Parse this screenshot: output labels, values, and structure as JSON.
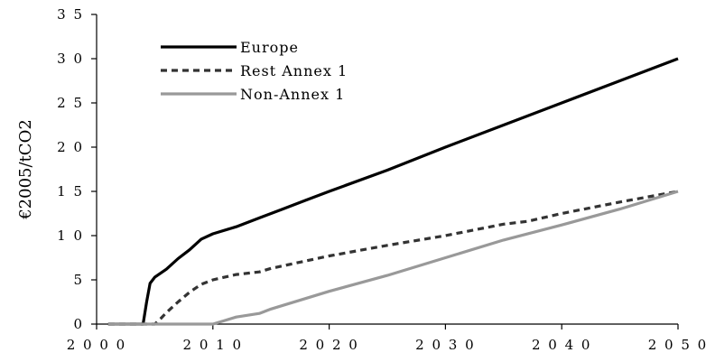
{
  "chart_data": {
    "type": "line",
    "title": "",
    "xlabel": "",
    "ylabel": "€2005/tCO2",
    "xlim": [
      2000,
      2050
    ],
    "ylim": [
      0,
      35
    ],
    "xticks": [
      2000,
      2010,
      2020,
      2030,
      2040,
      2050
    ],
    "yticks": [
      0,
      5,
      10,
      15,
      20,
      25,
      30,
      35
    ],
    "grid": false,
    "legend_position": "top-left",
    "series": [
      {
        "name": "Europe",
        "color": "#000000",
        "dash": "solid",
        "points": [
          [
            2001,
            0
          ],
          [
            2004,
            0
          ],
          [
            2004.3,
            2.5
          ],
          [
            2004.6,
            4.6
          ],
          [
            2005,
            5.3
          ],
          [
            2006,
            6.2
          ],
          [
            2007,
            7.4
          ],
          [
            2008,
            8.4
          ],
          [
            2009,
            9.6
          ],
          [
            2010,
            10.2
          ],
          [
            2012,
            11.0
          ],
          [
            2014,
            12.0
          ],
          [
            2016,
            13.0
          ],
          [
            2018,
            14.0
          ],
          [
            2020,
            15.0
          ],
          [
            2025,
            17.4
          ],
          [
            2030,
            20.0
          ],
          [
            2035,
            22.5
          ],
          [
            2040,
            25.0
          ],
          [
            2045,
            27.5
          ],
          [
            2050,
            30.0
          ]
        ]
      },
      {
        "name": "Rest Annex 1",
        "color": "#333333",
        "dash": "dashed",
        "points": [
          [
            2001,
            0
          ],
          [
            2005,
            0
          ],
          [
            2005.5,
            0.6
          ],
          [
            2006,
            1.3
          ],
          [
            2007,
            2.5
          ],
          [
            2008,
            3.6
          ],
          [
            2009,
            4.5
          ],
          [
            2010,
            5.0
          ],
          [
            2012,
            5.6
          ],
          [
            2014,
            5.9
          ],
          [
            2015,
            6.3
          ],
          [
            2020,
            7.7
          ],
          [
            2025,
            8.9
          ],
          [
            2030,
            10.0
          ],
          [
            2035,
            11.3
          ],
          [
            2037,
            11.6
          ],
          [
            2040,
            12.5
          ],
          [
            2045,
            13.8
          ],
          [
            2050,
            15.0
          ]
        ]
      },
      {
        "name": "Non-Annex 1",
        "color": "#999999",
        "dash": "solid",
        "points": [
          [
            2001,
            0
          ],
          [
            2010,
            0
          ],
          [
            2011,
            0.4
          ],
          [
            2012,
            0.8
          ],
          [
            2014,
            1.2
          ],
          [
            2015,
            1.7
          ],
          [
            2020,
            3.7
          ],
          [
            2025,
            5.5
          ],
          [
            2030,
            7.5
          ],
          [
            2035,
            9.5
          ],
          [
            2040,
            11.2
          ],
          [
            2045,
            13.0
          ],
          [
            2050,
            15.0
          ]
        ]
      }
    ]
  }
}
